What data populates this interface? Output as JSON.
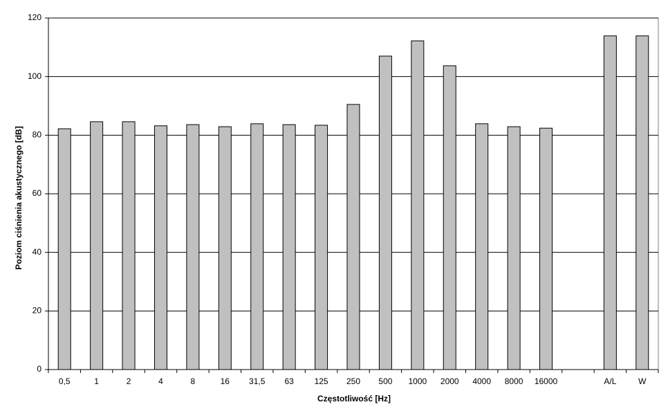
{
  "chart_data": {
    "type": "bar",
    "x_label": "Częstotliwość [Hz]",
    "y_label": "Poziom ciśnienia akustycznego [dB]",
    "categories": [
      "0,5",
      "1",
      "2",
      "4",
      "8",
      "16",
      "31,5",
      "63",
      "125",
      "250",
      "500",
      "1000",
      "2000",
      "4000",
      "8000",
      "16000",
      null,
      "A/L",
      "W"
    ],
    "values": [
      82.2,
      84.6,
      84.6,
      83.2,
      83.6,
      82.9,
      83.9,
      83.6,
      83.4,
      90.5,
      107.0,
      112.2,
      103.7,
      83.9,
      82.9,
      82.4,
      null,
      113.9,
      113.9
    ],
    "color": "#c0c0c0",
    "ylim": [
      0,
      120
    ],
    "yticks": [
      0,
      20,
      40,
      60,
      80,
      100,
      120
    ],
    "grid": true
  }
}
